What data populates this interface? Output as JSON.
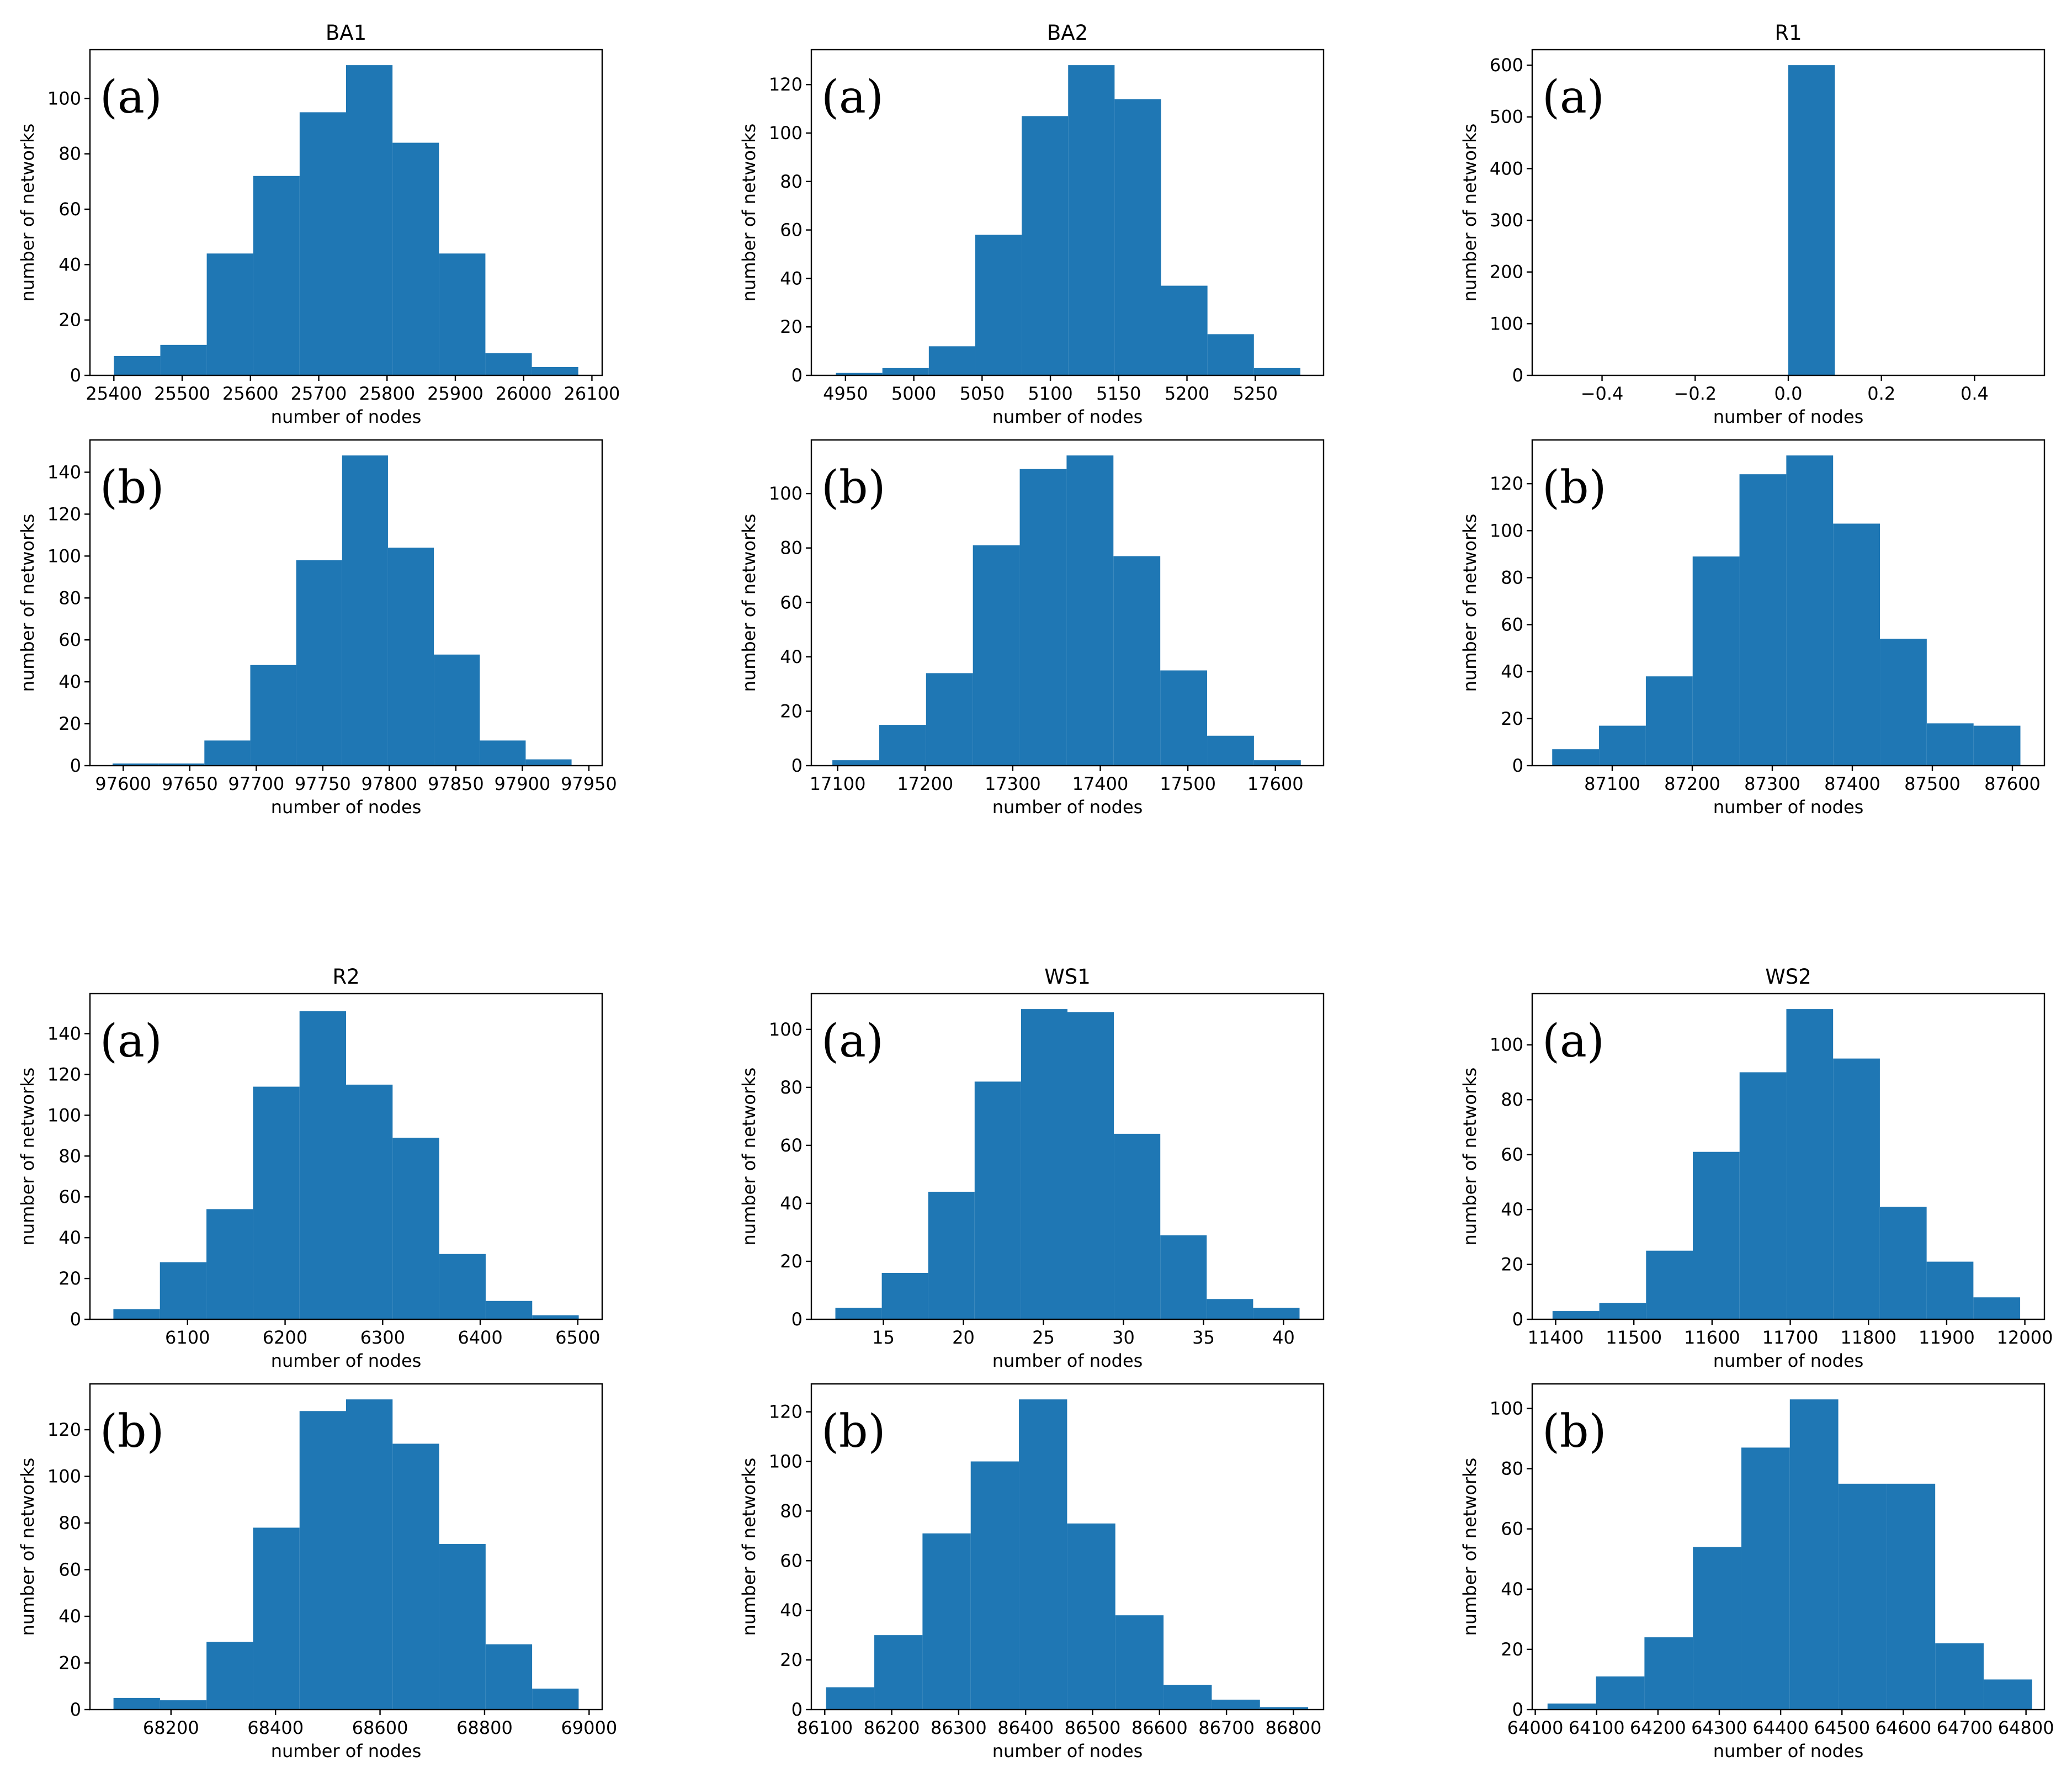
{
  "chart_data": [
    {
      "type": "bar",
      "title": "BA1",
      "panel": "(a)",
      "xlabel": "number of nodes",
      "ylabel": "number of networks",
      "xlim": [
        25365,
        26115
      ],
      "ylim": [
        0,
        117.6
      ],
      "xticks": [
        25400,
        25500,
        25600,
        25700,
        25800,
        25900,
        26000,
        26100
      ],
      "xtick_labels": [
        "25400",
        "25500",
        "25600",
        "25700",
        "25800",
        "25900",
        "26000",
        "26100"
      ],
      "yticks": [
        0,
        20,
        40,
        60,
        80,
        100
      ],
      "ytick_labels": [
        "0",
        "20",
        "40",
        "60",
        "80",
        "100"
      ],
      "bin_edges": [
        25400,
        25468,
        25536,
        25604,
        25672,
        25740,
        25808,
        25876,
        25944,
        26012,
        26080
      ],
      "counts": [
        7,
        11,
        44,
        72,
        95,
        112,
        84,
        44,
        8,
        3
      ]
    },
    {
      "type": "bar",
      "title": "BA2",
      "panel": "(a)",
      "xlabel": "number of nodes",
      "ylabel": "number of networks",
      "xlim": [
        4925,
        5300
      ],
      "ylim": [
        0,
        134.4
      ],
      "xticks": [
        4950,
        5000,
        5050,
        5100,
        5150,
        5200,
        5250
      ],
      "xtick_labels": [
        "4950",
        "5000",
        "5050",
        "5100",
        "5150",
        "5200",
        "5250"
      ],
      "yticks": [
        0,
        20,
        40,
        60,
        80,
        100,
        120
      ],
      "ytick_labels": [
        "0",
        "20",
        "40",
        "60",
        "80",
        "100",
        "120"
      ],
      "bin_edges": [
        4943,
        4977,
        5011,
        5045,
        5079,
        5113,
        5147,
        5181,
        5215,
        5249,
        5283
      ],
      "counts": [
        1,
        3,
        12,
        58,
        107,
        128,
        114,
        37,
        17,
        3
      ]
    },
    {
      "type": "bar",
      "title": "R1",
      "panel": "(a)",
      "xlabel": "number of nodes",
      "ylabel": "number of networks",
      "xlim": [
        -0.55,
        0.55
      ],
      "ylim": [
        0,
        630
      ],
      "xticks": [
        -0.4,
        -0.2,
        0.0,
        0.2,
        0.4
      ],
      "xtick_labels": [
        "−0.4",
        "−0.2",
        "0.0",
        "0.2",
        "0.4"
      ],
      "yticks": [
        0,
        100,
        200,
        300,
        400,
        500,
        600
      ],
      "ytick_labels": [
        "0",
        "100",
        "200",
        "300",
        "400",
        "500",
        "600"
      ],
      "bin_edges": [
        -0.5,
        -0.4,
        -0.3,
        -0.2,
        -0.1,
        0.0,
        0.1,
        0.2,
        0.3,
        0.4,
        0.5
      ],
      "counts": [
        0,
        0,
        0,
        0,
        0,
        600,
        0,
        0,
        0,
        0
      ]
    },
    {
      "type": "bar",
      "title": "",
      "panel": "(b)",
      "xlabel": "number of nodes",
      "ylabel": "number of networks",
      "xlim": [
        97575,
        97960
      ],
      "ylim": [
        0,
        155.4
      ],
      "xticks": [
        97600,
        97650,
        97700,
        97750,
        97800,
        97850,
        97900,
        97950
      ],
      "xtick_labels": [
        "97600",
        "97650",
        "97700",
        "97750",
        "97800",
        "97850",
        "97900",
        "97950"
      ],
      "yticks": [
        0,
        20,
        40,
        60,
        80,
        100,
        120,
        140
      ],
      "ytick_labels": [
        "0",
        "20",
        "40",
        "60",
        "80",
        "100",
        "120",
        "140"
      ],
      "bin_edges": [
        97592,
        97626.5,
        97661,
        97695.5,
        97730,
        97764.5,
        97799,
        97833.5,
        97868,
        97902.5,
        97937
      ],
      "counts": [
        1,
        1,
        12,
        48,
        98,
        148,
        104,
        53,
        12,
        3
      ]
    },
    {
      "type": "bar",
      "title": "",
      "panel": "(b)",
      "xlabel": "number of nodes",
      "ylabel": "number of networks",
      "xlim": [
        17070,
        17655
      ],
      "ylim": [
        0,
        119.7
      ],
      "xticks": [
        17100,
        17200,
        17300,
        17400,
        17500,
        17600
      ],
      "xtick_labels": [
        "17100",
        "17200",
        "17300",
        "17400",
        "17500",
        "17600"
      ],
      "yticks": [
        0,
        20,
        40,
        60,
        80,
        100
      ],
      "ytick_labels": [
        "0",
        "20",
        "40",
        "60",
        "80",
        "100"
      ],
      "bin_edges": [
        17094,
        17147.5,
        17201,
        17254.5,
        17308,
        17361.5,
        17415,
        17468.5,
        17522,
        17575.5,
        17629
      ],
      "counts": [
        2,
        15,
        34,
        81,
        109,
        114,
        77,
        35,
        11,
        2
      ]
    },
    {
      "type": "bar",
      "title": "",
      "panel": "(b)",
      "xlabel": "number of nodes",
      "ylabel": "number of networks",
      "xlim": [
        87000,
        87640
      ],
      "ylim": [
        0,
        138.6
      ],
      "xticks": [
        87100,
        87200,
        87300,
        87400,
        87500,
        87600
      ],
      "xtick_labels": [
        "87100",
        "87200",
        "87300",
        "87400",
        "87500",
        "87600"
      ],
      "yticks": [
        0,
        20,
        40,
        60,
        80,
        100,
        120
      ],
      "ytick_labels": [
        "0",
        "20",
        "40",
        "60",
        "80",
        "100",
        "120"
      ],
      "bin_edges": [
        87025,
        87083.5,
        87142,
        87200.5,
        87259,
        87317.5,
        87376,
        87434.5,
        87493,
        87551.5,
        87610
      ],
      "counts": [
        7,
        17,
        38,
        89,
        124,
        132,
        103,
        54,
        18,
        17
      ]
    },
    {
      "type": "bar",
      "title": "R2",
      "panel": "(a)",
      "xlabel": "number of nodes",
      "ylabel": "number of networks",
      "xlim": [
        6000,
        6525
      ],
      "ylim": [
        0,
        159.6
      ],
      "xticks": [
        6100,
        6200,
        6300,
        6400,
        6500
      ],
      "xtick_labels": [
        "6100",
        "6200",
        "6300",
        "6400",
        "6500"
      ],
      "yticks": [
        0,
        20,
        40,
        60,
        80,
        100,
        120,
        140
      ],
      "ytick_labels": [
        "0",
        "20",
        "40",
        "60",
        "80",
        "100",
        "120",
        "140"
      ],
      "bin_edges": [
        6024,
        6071.7,
        6119.4,
        6167.1,
        6214.8,
        6262.5,
        6310.2,
        6357.9,
        6405.6,
        6453.3,
        6501
      ],
      "counts": [
        5,
        28,
        54,
        114,
        151,
        115,
        89,
        32,
        9,
        2
      ]
    },
    {
      "type": "bar",
      "title": "WS1",
      "panel": "(a)",
      "xlabel": "number of nodes",
      "ylabel": "number of networks",
      "xlim": [
        10.5,
        42.5
      ],
      "ylim": [
        0,
        112.35
      ],
      "xticks": [
        15,
        20,
        25,
        30,
        35,
        40
      ],
      "xtick_labels": [
        "15",
        "20",
        "25",
        "30",
        "35",
        "40"
      ],
      "yticks": [
        0,
        20,
        40,
        60,
        80,
        100
      ],
      "ytick_labels": [
        "0",
        "20",
        "40",
        "60",
        "80",
        "100"
      ],
      "bin_edges": [
        12,
        14.9,
        17.8,
        20.7,
        23.6,
        26.5,
        29.4,
        32.3,
        35.2,
        38.1,
        41
      ],
      "counts": [
        4,
        16,
        44,
        82,
        107,
        106,
        64,
        29,
        7,
        4
      ]
    },
    {
      "type": "bar",
      "title": "WS2",
      "panel": "(a)",
      "xlabel": "number of nodes",
      "ylabel": "number of networks",
      "xlim": [
        11370,
        12025
      ],
      "ylim": [
        0,
        118.65
      ],
      "xticks": [
        11400,
        11500,
        11600,
        11700,
        11800,
        11900,
        12000
      ],
      "xtick_labels": [
        "11400",
        "11500",
        "11600",
        "11700",
        "11800",
        "11900",
        "12000"
      ],
      "yticks": [
        0,
        20,
        40,
        60,
        80,
        100
      ],
      "ytick_labels": [
        "0",
        "20",
        "40",
        "60",
        "80",
        "100"
      ],
      "bin_edges": [
        11396,
        11455.8,
        11515.6,
        11575.4,
        11635.2,
        11695,
        11754.8,
        11814.6,
        11874.4,
        11934.2,
        11994
      ],
      "counts": [
        3,
        6,
        25,
        61,
        90,
        113,
        95,
        41,
        21,
        8
      ]
    },
    {
      "type": "bar",
      "title": "",
      "panel": "(b)",
      "xlabel": "number of nodes",
      "ylabel": "number of networks",
      "xlim": [
        68045,
        69025
      ],
      "ylim": [
        0,
        139.65
      ],
      "xticks": [
        68200,
        68400,
        68600,
        68800,
        69000
      ],
      "xtick_labels": [
        "68200",
        "68400",
        "68600",
        "68800",
        "69000"
      ],
      "yticks": [
        0,
        20,
        40,
        60,
        80,
        100,
        120
      ],
      "ytick_labels": [
        "0",
        "20",
        "40",
        "60",
        "80",
        "100",
        "120"
      ],
      "bin_edges": [
        68090,
        68179,
        68268,
        68357,
        68446,
        68535,
        68624,
        68713,
        68802,
        68891,
        68980
      ],
      "counts": [
        5,
        4,
        29,
        78,
        128,
        133,
        114,
        71,
        28,
        9
      ]
    },
    {
      "type": "bar",
      "title": "",
      "panel": "(b)",
      "xlabel": "number of nodes",
      "ylabel": "number of networks",
      "xlim": [
        86080,
        86845
      ],
      "ylim": [
        0,
        131.25
      ],
      "xticks": [
        86100,
        86200,
        86300,
        86400,
        86500,
        86600,
        86700,
        86800
      ],
      "xtick_labels": [
        "86100",
        "86200",
        "86300",
        "86400",
        "86500",
        "86600",
        "86700",
        "86800"
      ],
      "yticks": [
        0,
        20,
        40,
        60,
        80,
        100,
        120
      ],
      "ytick_labels": [
        "0",
        "20",
        "40",
        "60",
        "80",
        "100",
        "120"
      ],
      "bin_edges": [
        86102,
        86174,
        86246,
        86318,
        86390,
        86462,
        86534,
        86606,
        86678,
        86750,
        86822
      ],
      "counts": [
        9,
        30,
        71,
        100,
        125,
        75,
        38,
        10,
        4,
        1
      ]
    },
    {
      "type": "bar",
      "title": "",
      "panel": "(b)",
      "xlabel": "number of nodes",
      "ylabel": "number of networks",
      "xlim": [
        63995,
        64830
      ],
      "ylim": [
        0,
        108.15
      ],
      "xticks": [
        64000,
        64100,
        64200,
        64300,
        64400,
        64500,
        64600,
        64700,
        64800
      ],
      "xtick_labels": [
        "64000",
        "64100",
        "64200",
        "64300",
        "64400",
        "64500",
        "64600",
        "64700",
        "64800"
      ],
      "yticks": [
        0,
        20,
        40,
        60,
        80,
        100
      ],
      "ytick_labels": [
        "0",
        "20",
        "40",
        "60",
        "80",
        "100"
      ],
      "bin_edges": [
        64020,
        64099,
        64178,
        64257,
        64336,
        64415,
        64494,
        64573,
        64652,
        64731,
        64810
      ],
      "counts": [
        2,
        11,
        24,
        54,
        87,
        103,
        75,
        75,
        22,
        10
      ]
    }
  ]
}
